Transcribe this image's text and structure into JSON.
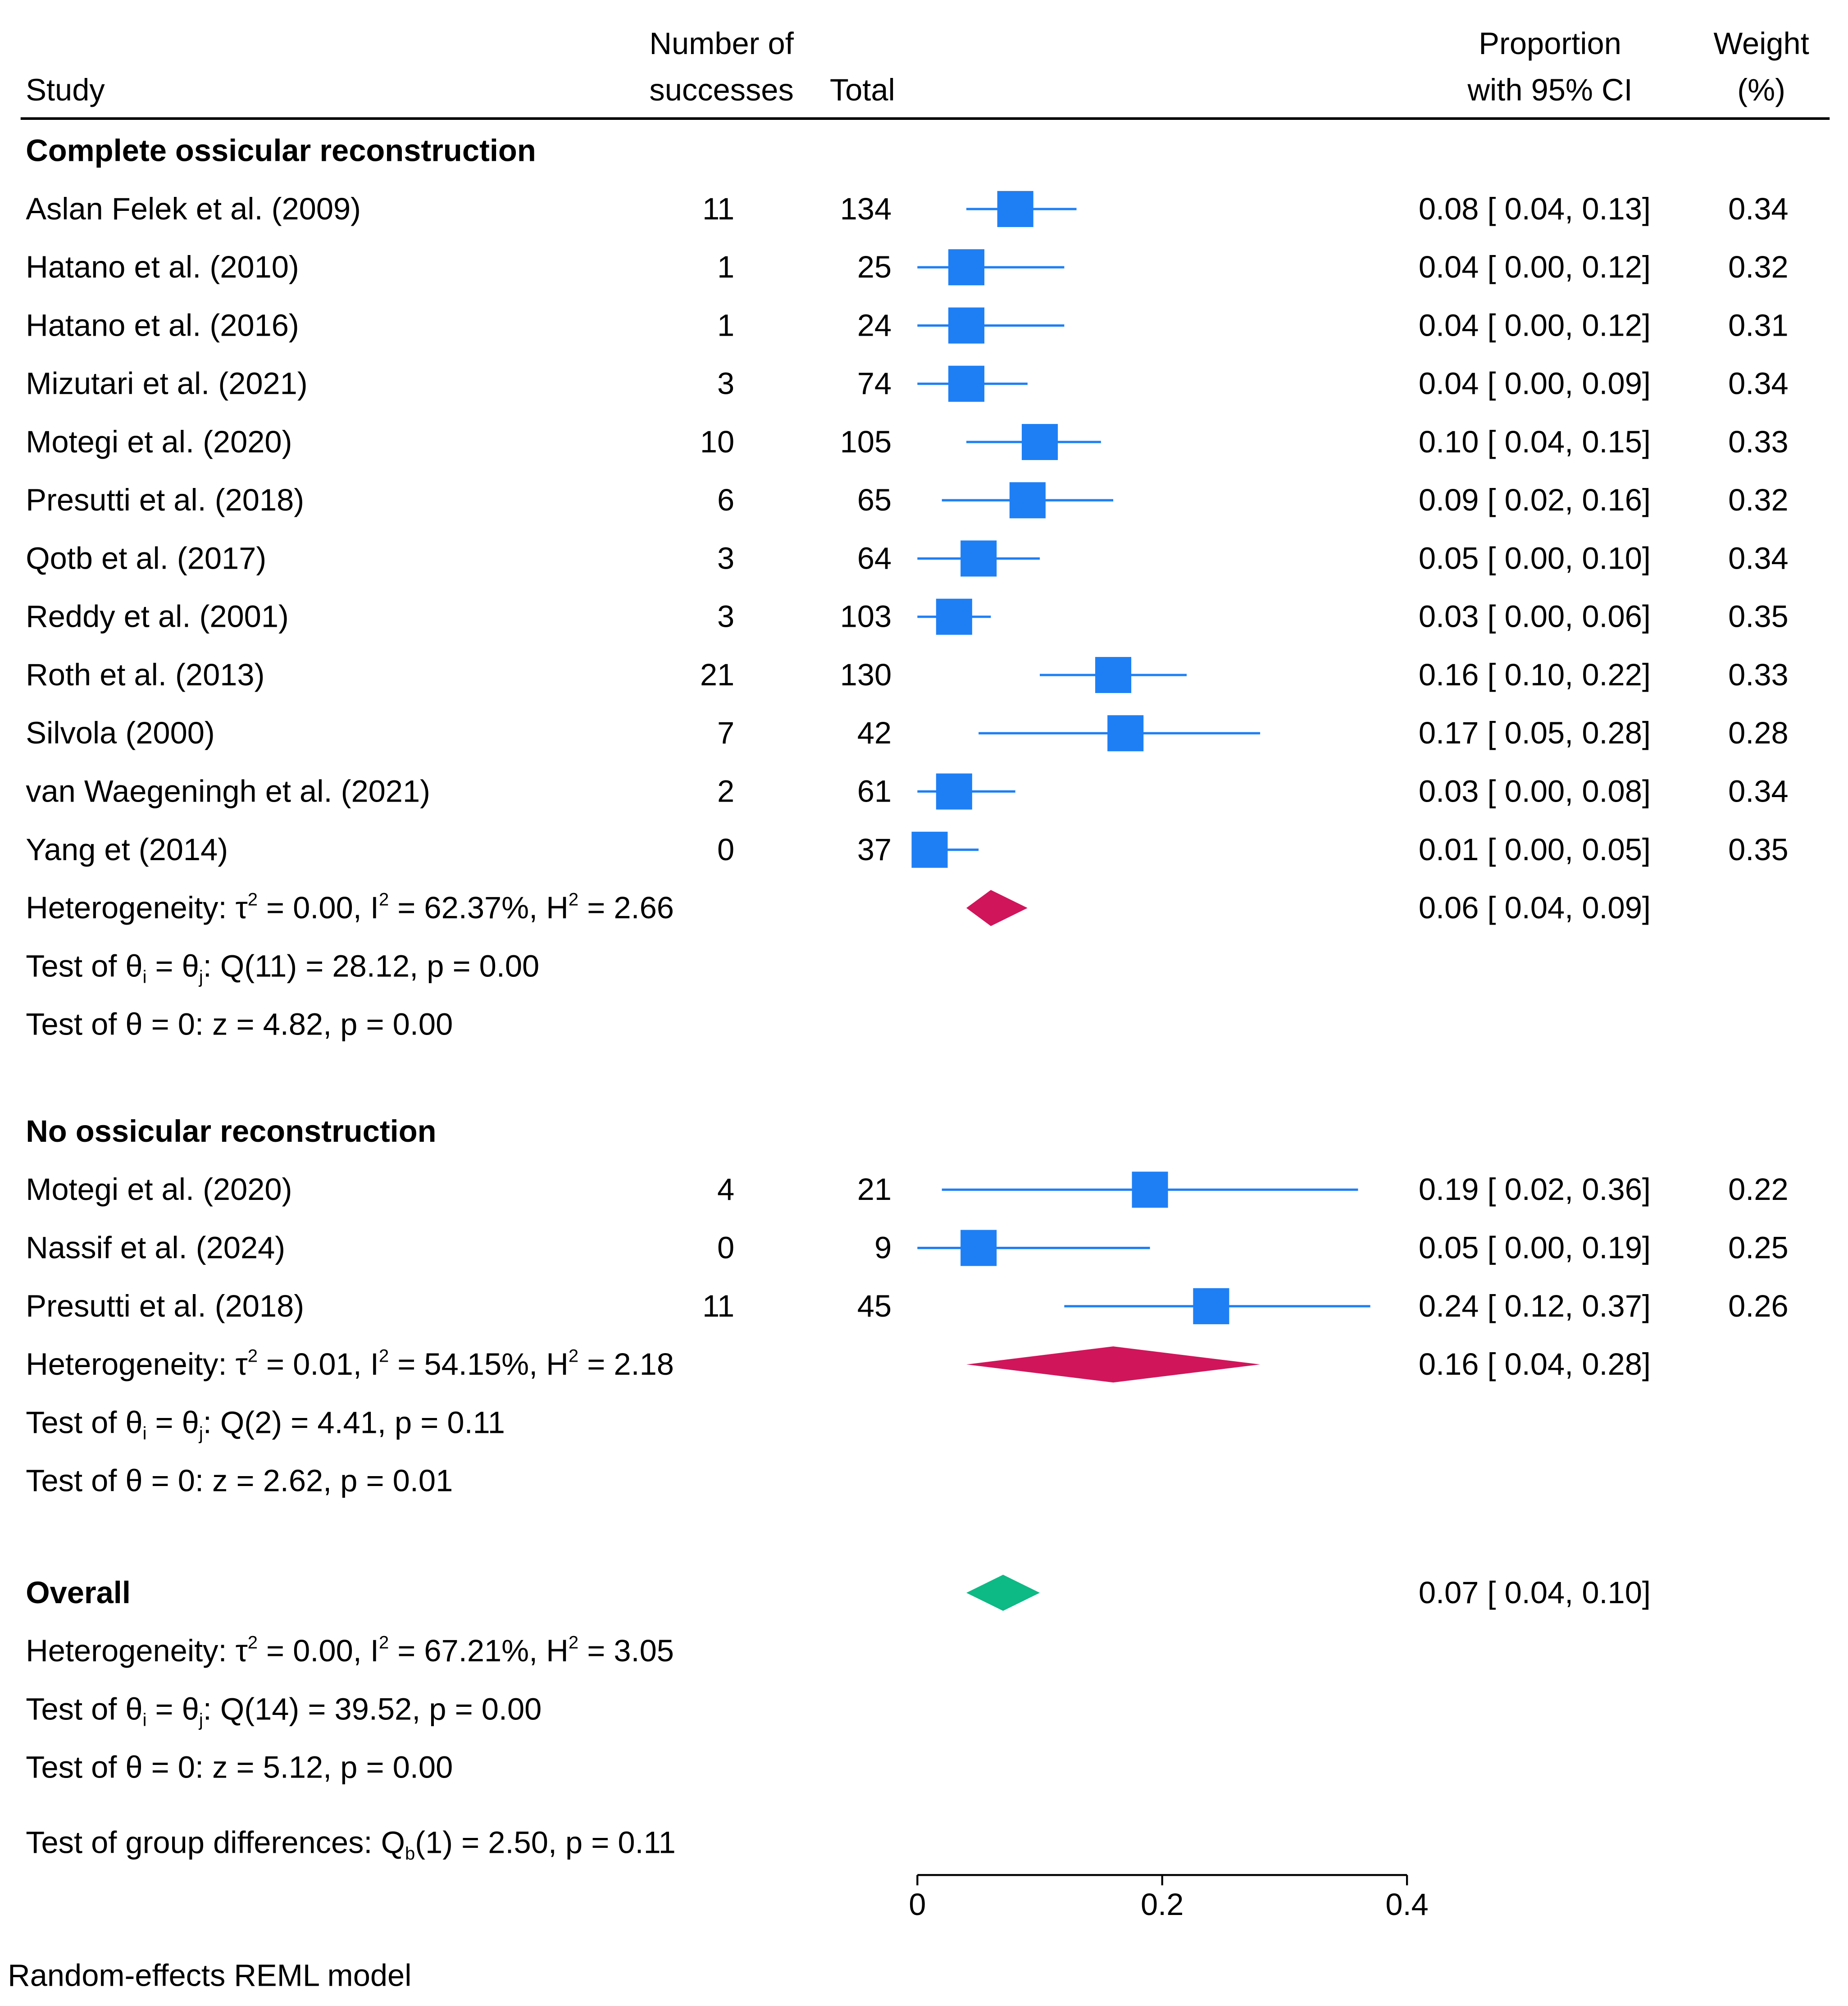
{
  "chart_data": {
    "type": "forest",
    "headers": {
      "study": "Study",
      "successes": [
        "Number of",
        "successes"
      ],
      "total": "Total",
      "proportion": [
        "Proportion",
        "with 95% CI"
      ],
      "weight": [
        "Weight",
        "(%)"
      ]
    },
    "x_axis": {
      "range": [
        0,
        0.4
      ],
      "ticks": [
        0,
        0.2,
        0.4
      ],
      "tick_labels": [
        "0",
        "0.2",
        "0.4"
      ]
    },
    "colors": {
      "study_marker": "#1e7ff5",
      "group1_diamond": "#d0155b",
      "group2_diamond": "#d0155b",
      "overall_diamond": "#0db985"
    },
    "groups": [
      {
        "title": "Complete ossicular reconstruction",
        "studies": [
          {
            "name": "Aslan Felek et al. (2009)",
            "successes": "11",
            "total": "134",
            "est": 0.08,
            "lo": 0.04,
            "hi": 0.13,
            "ci_text": "0.08 [ 0.04,  0.13]",
            "weight": "0.34"
          },
          {
            "name": "Hatano et al. (2010)",
            "successes": "1",
            "total": "25",
            "est": 0.04,
            "lo": 0.0,
            "hi": 0.12,
            "ci_text": "0.04 [ 0.00,  0.12]",
            "weight": "0.32"
          },
          {
            "name": "Hatano et al. (2016)",
            "successes": "1",
            "total": "24",
            "est": 0.04,
            "lo": 0.0,
            "hi": 0.12,
            "ci_text": "0.04 [ 0.00,  0.12]",
            "weight": "0.31"
          },
          {
            "name": "Mizutari et al. (2021)",
            "successes": "3",
            "total": "74",
            "est": 0.04,
            "lo": 0.0,
            "hi": 0.09,
            "ci_text": "0.04 [ 0.00,  0.09]",
            "weight": "0.34"
          },
          {
            "name": "Motegi et al. (2020)",
            "successes": "10",
            "total": "105",
            "est": 0.1,
            "lo": 0.04,
            "hi": 0.15,
            "ci_text": "0.10 [ 0.04,  0.15]",
            "weight": "0.33"
          },
          {
            "name": "Presutti et al. (2018)",
            "successes": "6",
            "total": "65",
            "est": 0.09,
            "lo": 0.02,
            "hi": 0.16,
            "ci_text": "0.09 [ 0.02,  0.16]",
            "weight": "0.32"
          },
          {
            "name": "Qotb et al. (2017)",
            "successes": "3",
            "total": "64",
            "est": 0.05,
            "lo": 0.0,
            "hi": 0.1,
            "ci_text": "0.05 [ 0.00,  0.10]",
            "weight": "0.34"
          },
          {
            "name": "Reddy et al. (2001)",
            "successes": "3",
            "total": "103",
            "est": 0.03,
            "lo": 0.0,
            "hi": 0.06,
            "ci_text": "0.03 [ 0.00,  0.06]",
            "weight": "0.35"
          },
          {
            "name": "Roth et al. (2013)",
            "successes": "21",
            "total": "130",
            "est": 0.16,
            "lo": 0.1,
            "hi": 0.22,
            "ci_text": "0.16 [ 0.10,  0.22]",
            "weight": "0.33"
          },
          {
            "name": "Silvola (2000)",
            "successes": "7",
            "total": "42",
            "est": 0.17,
            "lo": 0.05,
            "hi": 0.28,
            "ci_text": "0.17 [ 0.05,  0.28]",
            "weight": "0.28"
          },
          {
            "name": "van Waegeningh et al. (2021)",
            "successes": "2",
            "total": "61",
            "est": 0.03,
            "lo": 0.0,
            "hi": 0.08,
            "ci_text": "0.03 [ 0.00,  0.08]",
            "weight": "0.34"
          },
          {
            "name": "Yang et (2014)",
            "successes": "0",
            "total": "37",
            "est": 0.01,
            "lo": 0.0,
            "hi": 0.05,
            "ci_text": "0.01 [ 0.00,  0.05]",
            "weight": "0.35"
          }
        ],
        "pooled": {
          "est": 0.06,
          "lo": 0.04,
          "hi": 0.09,
          "ci_text": "0.06 [ 0.04,  0.09]"
        },
        "heterogeneity": {
          "tau2": "0.00",
          "i2": "62.37%",
          "h2": "2.66"
        },
        "q_test": {
          "df": "11",
          "rest": "28.12, p = 0.00"
        },
        "z_test": "Test of θ = 0: z = 4.82, p = 0.00"
      },
      {
        "title": "No ossicular reconstruction",
        "studies": [
          {
            "name": "Motegi et al. (2020)",
            "successes": "4",
            "total": "21",
            "est": 0.19,
            "lo": 0.02,
            "hi": 0.36,
            "ci_text": "0.19 [ 0.02,  0.36]",
            "weight": "0.22"
          },
          {
            "name": "Nassif et al. (2024)",
            "successes": "0",
            "total": "9",
            "est": 0.05,
            "lo": 0.0,
            "hi": 0.19,
            "ci_text": "0.05 [ 0.00,  0.19]",
            "weight": "0.25"
          },
          {
            "name": "Presutti et al. (2018)",
            "successes": "11",
            "total": "45",
            "est": 0.24,
            "lo": 0.12,
            "hi": 0.37,
            "ci_text": "0.24 [ 0.12,  0.37]",
            "weight": "0.26"
          }
        ],
        "pooled": {
          "est": 0.16,
          "lo": 0.04,
          "hi": 0.28,
          "ci_text": "0.16 [ 0.04,  0.28]"
        },
        "heterogeneity": {
          "tau2": "0.01",
          "i2": "54.15%",
          "h2": "2.18"
        },
        "q_test": {
          "df": "2",
          "rest": "4.41, p = 0.11"
        },
        "z_test": "Test of θ = 0: z = 2.62, p = 0.01"
      }
    ],
    "overall": {
      "label": "Overall",
      "est": 0.07,
      "lo": 0.04,
      "hi": 0.1,
      "ci_text": "0.07 [ 0.04,  0.10]",
      "heterogeneity": {
        "tau2": "0.00",
        "i2": "67.21%",
        "h2": "3.05"
      },
      "q_test": {
        "df": "14",
        "rest": "39.52, p = 0.00"
      },
      "z_test": "Test of θ = 0: z = 5.12, p = 0.00"
    },
    "group_diff": {
      "prefix": "Test of group differences: Q",
      "sub": "b",
      "suffix": "(1) = 2.50, p = 0.11"
    },
    "footnote": "Random-effects REML model"
  }
}
